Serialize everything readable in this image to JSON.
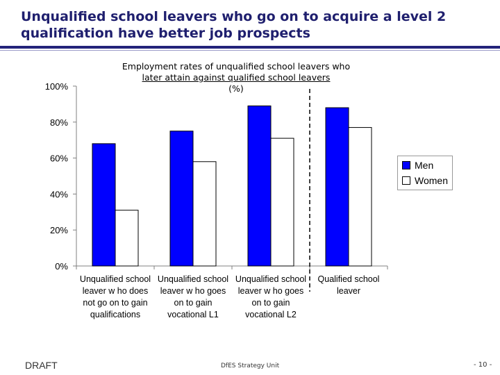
{
  "slide": {
    "title_line1": "Unqualified school leavers who go on to acquire a level 2",
    "title_line2": "qualification have better job prospects"
  },
  "footer": {
    "draft": "DRAFT",
    "unit": "DfES Strategy Unit",
    "page": "- 10 -"
  },
  "chart_data": {
    "type": "bar",
    "title_lines": [
      "Employment rates of unqualified school leavers who",
      "later attain against qualified school leavers",
      "(%)"
    ],
    "categories": [
      [
        "Unqualified school",
        "leaver w ho does",
        "not go on to gain",
        "qualifications"
      ],
      [
        "Unqualified school",
        "leaver w ho goes",
        "on to gain",
        "vocational L1"
      ],
      [
        "Unqualified school",
        "leaver w ho goes",
        "on to gain",
        "vocational L2"
      ],
      [
        "Qualified school",
        "leaver"
      ]
    ],
    "series": [
      {
        "name": "Men",
        "values": [
          68,
          75,
          89,
          88
        ],
        "color": "#0000ff"
      },
      {
        "name": "Women",
        "values": [
          31,
          58,
          71,
          77
        ],
        "color": "#ffffff"
      }
    ],
    "ylim": [
      0,
      100
    ],
    "yticks": [
      "0%",
      "20%",
      "40%",
      "60%",
      "80%",
      "100%"
    ],
    "legend_position": "right",
    "grid": false,
    "divider_after_category": 3
  }
}
